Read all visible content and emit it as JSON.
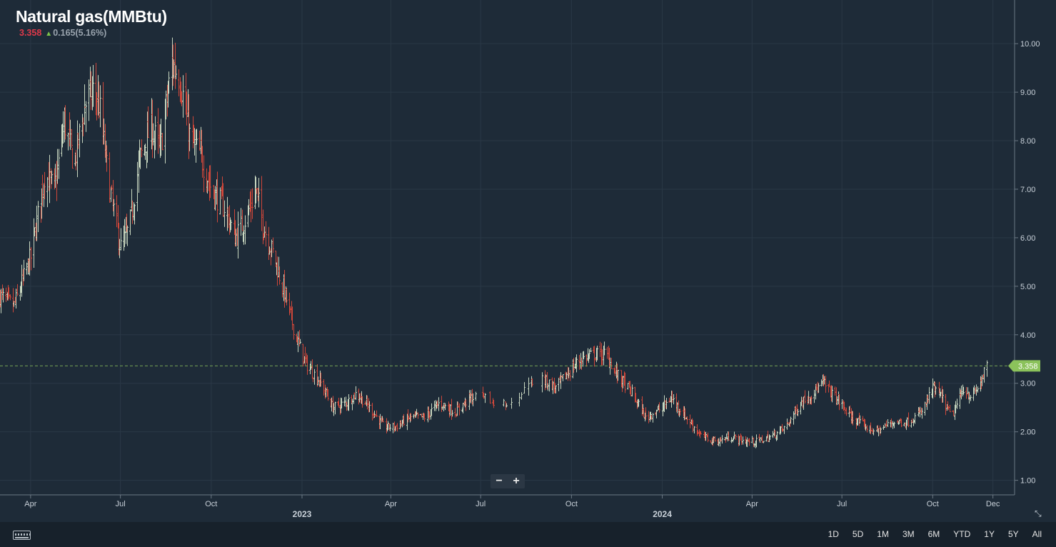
{
  "header": {
    "title": "Natural gas(MMBtu)",
    "last": "3.358",
    "change": "0.165(5.16%)",
    "up_icon": "up-arrow-icon"
  },
  "zoom": {
    "minus": "−",
    "plus": "+"
  },
  "footer": {
    "keyboard_icon": "keyboard-icon",
    "ranges": [
      "1D",
      "5D",
      "1M",
      "3M",
      "6M",
      "YTD",
      "1Y",
      "5Y",
      "All"
    ]
  },
  "colors": {
    "background": "#1e2b38",
    "up": "#c8d7c0",
    "down": "#d0473a",
    "last_price": "#8bc25b",
    "title": "#ffffff"
  },
  "chart_data": {
    "type": "ohlc",
    "title": "Natural gas(MMBtu)",
    "ylim": [
      0.7,
      10.9
    ],
    "y_ticks": [
      "1.00",
      "2.00",
      "3.00",
      "4.00",
      "5.00",
      "6.00",
      "7.00",
      "8.00",
      "9.00",
      "10.00"
    ],
    "x_ticks": [
      {
        "date": "2022-04-01",
        "label": "Apr",
        "year": ""
      },
      {
        "date": "2022-07-01",
        "label": "Jul",
        "year": ""
      },
      {
        "date": "2022-10-01",
        "label": "Oct",
        "year": ""
      },
      {
        "date": "2023-01-01",
        "label": "",
        "year": "2023"
      },
      {
        "date": "2023-04-01",
        "label": "Apr",
        "year": ""
      },
      {
        "date": "2023-07-01",
        "label": "Jul",
        "year": ""
      },
      {
        "date": "2023-10-01",
        "label": "Oct",
        "year": ""
      },
      {
        "date": "2024-01-01",
        "label": "",
        "year": "2024"
      },
      {
        "date": "2024-04-01",
        "label": "Apr",
        "year": ""
      },
      {
        "date": "2024-07-01",
        "label": "Jul",
        "year": ""
      },
      {
        "date": "2024-10-01",
        "label": "Oct",
        "year": ""
      },
      {
        "date": "2024-12-01",
        "label": "Dec",
        "year": ""
      }
    ],
    "last_price": {
      "value": 3.358,
      "label": "3.358"
    },
    "series_points": [
      [
        "2022-03-01",
        4.8
      ],
      [
        "2022-03-15",
        4.6
      ],
      [
        "2022-04-01",
        5.6
      ],
      [
        "2022-04-15",
        7.3
      ],
      [
        "2022-04-25",
        7.0
      ],
      [
        "2022-05-05",
        8.4
      ],
      [
        "2022-05-15",
        7.5
      ],
      [
        "2022-05-25",
        8.7
      ],
      [
        "2022-06-05",
        9.1
      ],
      [
        "2022-06-10",
        8.6
      ],
      [
        "2022-06-20",
        7.0
      ],
      [
        "2022-07-01",
        5.8
      ],
      [
        "2022-07-10",
        6.2
      ],
      [
        "2022-07-20",
        7.6
      ],
      [
        "2022-08-01",
        8.3
      ],
      [
        "2022-08-10",
        7.8
      ],
      [
        "2022-08-22",
        9.6
      ],
      [
        "2022-08-30",
        9.3
      ],
      [
        "2022-09-10",
        8.0
      ],
      [
        "2022-09-20",
        7.7
      ],
      [
        "2022-10-01",
        7.0
      ],
      [
        "2022-10-15",
        6.6
      ],
      [
        "2022-10-25",
        6.0
      ],
      [
        "2022-11-05",
        6.4
      ],
      [
        "2022-11-15",
        7.0
      ],
      [
        "2022-11-22",
        6.3
      ],
      [
        "2022-12-05",
        5.5
      ],
      [
        "2022-12-15",
        4.8
      ],
      [
        "2022-12-25",
        4.0
      ],
      [
        "2023-01-05",
        3.4
      ],
      [
        "2023-01-20",
        3.0
      ],
      [
        "2023-02-01",
        2.5
      ],
      [
        "2023-02-15",
        2.6
      ],
      [
        "2023-02-25",
        2.8
      ],
      [
        "2023-03-10",
        2.5
      ],
      [
        "2023-03-25",
        2.1
      ],
      [
        "2023-04-05",
        2.1
      ],
      [
        "2023-04-20",
        2.3
      ],
      [
        "2023-05-05",
        2.3
      ],
      [
        "2023-05-20",
        2.6
      ],
      [
        "2023-06-05",
        2.4
      ],
      [
        "2023-06-20",
        2.7
      ],
      [
        "2023-07-01",
        2.7
      ],
      [
        "2023-07-15",
        2.6
      ],
      [
        "2023-08-01",
        2.6
      ],
      [
        "2023-08-15",
        2.9
      ],
      [
        "2023-09-01",
        3.1
      ],
      [
        "2023-09-15",
        2.9
      ],
      [
        "2023-10-01",
        3.3
      ],
      [
        "2023-10-10",
        3.5
      ],
      [
        "2023-10-25",
        3.6
      ],
      [
        "2023-11-05",
        3.6
      ],
      [
        "2023-11-15",
        3.2
      ],
      [
        "2023-12-01",
        2.8
      ],
      [
        "2023-12-15",
        2.3
      ],
      [
        "2024-01-01",
        2.5
      ],
      [
        "2024-01-10",
        2.7
      ],
      [
        "2024-01-25",
        2.3
      ],
      [
        "2024-02-10",
        1.9
      ],
      [
        "2024-02-25",
        1.8
      ],
      [
        "2024-03-10",
        1.9
      ],
      [
        "2024-03-25",
        1.8
      ],
      [
        "2024-04-05",
        1.8
      ],
      [
        "2024-04-20",
        1.9
      ],
      [
        "2024-05-05",
        2.1
      ],
      [
        "2024-05-20",
        2.6
      ],
      [
        "2024-06-01",
        2.8
      ],
      [
        "2024-06-12",
        3.0
      ],
      [
        "2024-06-25",
        2.7
      ],
      [
        "2024-07-10",
        2.3
      ],
      [
        "2024-07-25",
        2.1
      ],
      [
        "2024-08-05",
        2.0
      ],
      [
        "2024-08-20",
        2.2
      ],
      [
        "2024-09-05",
        2.2
      ],
      [
        "2024-09-20",
        2.4
      ],
      [
        "2024-10-01",
        2.9
      ],
      [
        "2024-10-10",
        2.7
      ],
      [
        "2024-10-20",
        2.3
      ],
      [
        "2024-11-01",
        2.9
      ],
      [
        "2024-11-10",
        2.7
      ],
      [
        "2024-11-20",
        3.1
      ],
      [
        "2024-11-25",
        3.358
      ]
    ],
    "gaps": [
      [
        "2023-06-26",
        "2023-09-01"
      ]
    ]
  }
}
